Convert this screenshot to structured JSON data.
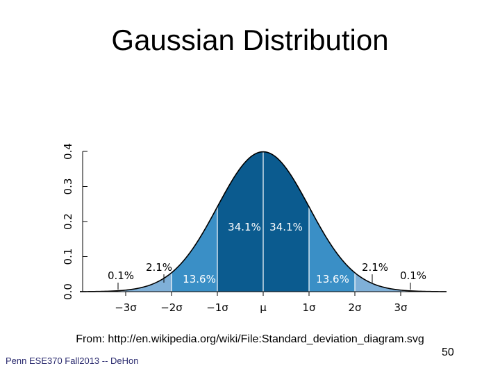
{
  "slide": {
    "title": "Gaussian Distribution",
    "source": "From: http://en.wikipedia.org/wiki/File:Standard_deviation_diagram.svg",
    "footer": "Penn ESE370 Fall2013 -- DeHon",
    "page_number": "50"
  },
  "colors": {
    "dark": "#0b5b8f",
    "medium": "#3a8fc6",
    "light": "#7fb0d8",
    "lightest": "#b7d3ec",
    "curve": "#000000",
    "white_text": "#ffffff"
  },
  "chart_data": {
    "type": "area",
    "title": "",
    "xlabel": "",
    "ylabel": "",
    "ylim": [
      0.0,
      0.4
    ],
    "xlim": [
      -4,
      4
    ],
    "y_ticks": [
      {
        "value": 0.0,
        "label": "0.0"
      },
      {
        "value": 0.1,
        "label": "0.1"
      },
      {
        "value": 0.2,
        "label": "0.2"
      },
      {
        "value": 0.3,
        "label": "0.3"
      },
      {
        "value": 0.4,
        "label": "0.4"
      }
    ],
    "x_ticks": [
      {
        "value": -3,
        "label": "−3σ"
      },
      {
        "value": -2,
        "label": "−2σ"
      },
      {
        "value": -1,
        "label": "−1σ"
      },
      {
        "value": 0,
        "label": "μ"
      },
      {
        "value": 1,
        "label": "1σ"
      },
      {
        "value": 2,
        "label": "2σ"
      },
      {
        "value": 3,
        "label": "3σ"
      }
    ],
    "curve": "standard normal density",
    "regions": [
      {
        "from": -3,
        "to": -2,
        "percent": "2.1%",
        "shade": "light"
      },
      {
        "from": -2,
        "to": -1,
        "percent": "13.6%",
        "shade": "medium"
      },
      {
        "from": -1,
        "to": 0,
        "percent": "34.1%",
        "shade": "dark"
      },
      {
        "from": 0,
        "to": 1,
        "percent": "34.1%",
        "shade": "dark"
      },
      {
        "from": 1,
        "to": 2,
        "percent": "13.6%",
        "shade": "medium"
      },
      {
        "from": 2,
        "to": 3,
        "percent": "2.1%",
        "shade": "light"
      }
    ],
    "tail_labels": [
      {
        "side": "left",
        "percent": "0.1%"
      },
      {
        "side": "right",
        "percent": "0.1%"
      }
    ]
  }
}
